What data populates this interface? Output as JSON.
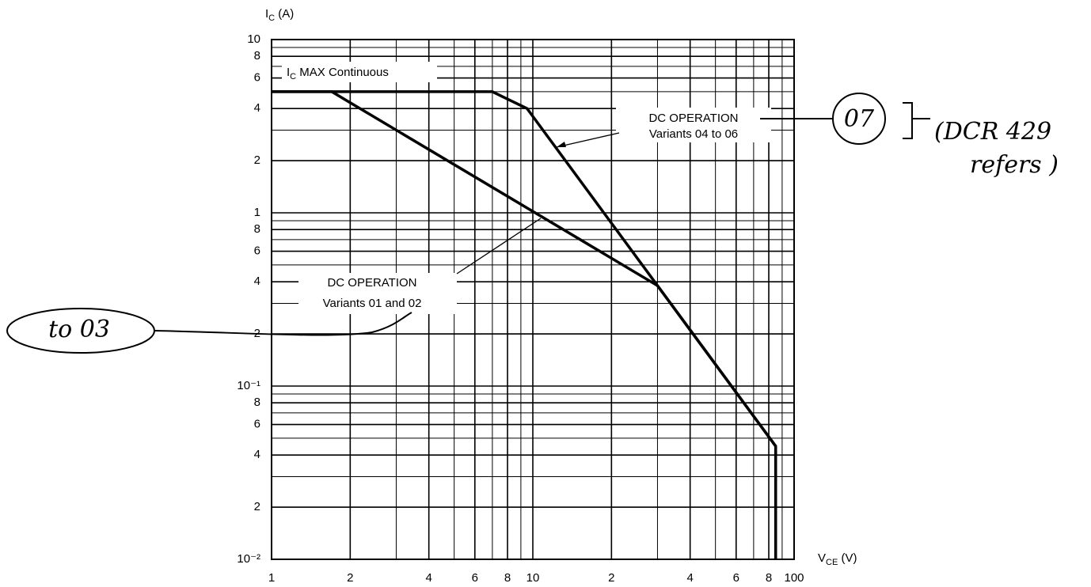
{
  "chart_data": {
    "type": "line",
    "y_label": {
      "main": "I",
      "sub": "C",
      "rest": " (A)"
    },
    "x_label": {
      "main": "V",
      "sub": "CE",
      "rest": " (V)"
    },
    "log_x": true,
    "log_y": true,
    "grid": true,
    "xlim": [
      1,
      100
    ],
    "ylim": [
      0.01,
      10
    ],
    "xticks": [
      1,
      2,
      4,
      6,
      8,
      10,
      {
        "value": 20,
        "label": "2"
      },
      {
        "value": 40,
        "label": "4"
      },
      {
        "value": 60,
        "label": "6"
      },
      {
        "value": 80,
        "label": "8"
      },
      100
    ],
    "yticks": [
      {
        "value": 0.01,
        "label": "10⁻²"
      },
      {
        "value": 0.02,
        "label": "2"
      },
      {
        "value": 0.04,
        "label": "4"
      },
      {
        "value": 0.06,
        "label": "6"
      },
      {
        "value": 0.08,
        "label": "8"
      },
      {
        "value": 0.1,
        "label": "10⁻¹"
      },
      {
        "value": 0.2,
        "label": "2"
      },
      {
        "value": 0.4,
        "label": "4"
      },
      {
        "value": 0.6,
        "label": "6"
      },
      {
        "value": 0.8,
        "label": "8"
      },
      1,
      2,
      4,
      6,
      8,
      10
    ],
    "series": [
      {
        "name": "DC OPERATION Variants 01 and 02",
        "color": "#000000",
        "x": [
          1,
          1.7,
          30,
          85,
          85
        ],
        "values": [
          5,
          5,
          0.38,
          0.045,
          0.01
        ]
      },
      {
        "name": "DC OPERATION Variants 04 to 06",
        "color": "#000000",
        "x": [
          1,
          7,
          9.5,
          30,
          85,
          85
        ],
        "values": [
          5,
          5,
          4,
          0.38,
          0.045,
          0.01
        ]
      }
    ],
    "annotations": [
      {
        "main": "I",
        "sub": "C",
        "rest": " MAX Continuous"
      },
      {
        "line1": "DC OPERATION",
        "line2": "Variants 04 to 06"
      },
      {
        "line1": "DC OPERATION",
        "line2": "Variants 01 and 02"
      }
    ],
    "handwritten": [
      "07",
      "(DCR 429",
      "refers )",
      "to 03"
    ]
  }
}
